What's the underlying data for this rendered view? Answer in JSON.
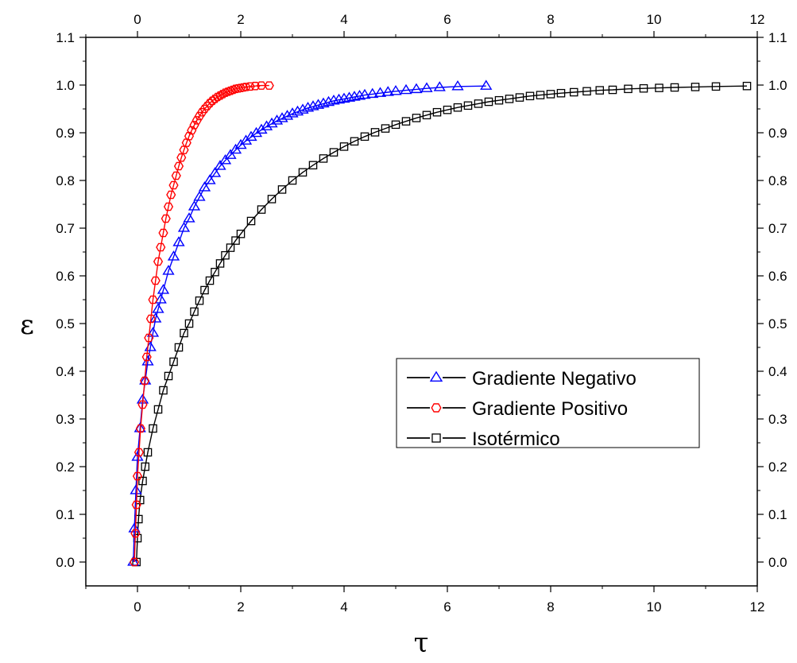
{
  "chart_data": {
    "type": "scatter",
    "title": "",
    "xlabel": "τ",
    "ylabel": "ε",
    "xlim": [
      -1,
      12
    ],
    "ylim": [
      -0.05,
      1.1
    ],
    "xticks": [
      "0",
      "2",
      "4",
      "6",
      "8",
      "10",
      "12"
    ],
    "yticks": [
      "0.0",
      "0.1",
      "0.2",
      "0.3",
      "0.4",
      "0.5",
      "0.6",
      "0.7",
      "0.8",
      "0.9",
      "1.0",
      "1.1"
    ],
    "top_axis_ticks": [
      "0",
      "2",
      "4",
      "6",
      "8",
      "10",
      "12"
    ],
    "right_axis_ticks": [
      "0.0",
      "0.1",
      "0.2",
      "0.3",
      "0.4",
      "0.5",
      "0.6",
      "0.7",
      "0.8",
      "0.9",
      "1.0",
      "1.1"
    ],
    "grid": false,
    "legend_position": "center-right",
    "series": [
      {
        "name": "Gradiente Negativo",
        "marker": "triangle",
        "color": "#0000ff",
        "x": [
          -0.08,
          -0.06,
          -0.03,
          0.0,
          0.05,
          0.1,
          0.15,
          0.2,
          0.25,
          0.3,
          0.35,
          0.4,
          0.45,
          0.5,
          0.6,
          0.7,
          0.8,
          0.9,
          1.0,
          1.1,
          1.2,
          1.3,
          1.4,
          1.5,
          1.6,
          1.7,
          1.8,
          1.9,
          2.0,
          2.1,
          2.2,
          2.3,
          2.4,
          2.5,
          2.6,
          2.7,
          2.8,
          2.9,
          3.0,
          3.1,
          3.2,
          3.3,
          3.4,
          3.5,
          3.6,
          3.7,
          3.8,
          3.9,
          4.0,
          4.1,
          4.2,
          4.3,
          4.4,
          4.55,
          4.7,
          4.85,
          5.0,
          5.2,
          5.4,
          5.6,
          5.85,
          6.2,
          6.75
        ],
        "y": [
          0.0,
          0.07,
          0.15,
          0.22,
          0.28,
          0.34,
          0.38,
          0.42,
          0.45,
          0.48,
          0.51,
          0.53,
          0.55,
          0.57,
          0.61,
          0.64,
          0.67,
          0.7,
          0.72,
          0.745,
          0.765,
          0.785,
          0.8,
          0.815,
          0.83,
          0.842,
          0.853,
          0.864,
          0.874,
          0.883,
          0.891,
          0.899,
          0.906,
          0.913,
          0.919,
          0.925,
          0.93,
          0.935,
          0.94,
          0.944,
          0.948,
          0.952,
          0.955,
          0.958,
          0.961,
          0.964,
          0.967,
          0.969,
          0.971,
          0.973,
          0.975,
          0.977,
          0.979,
          0.981,
          0.983,
          0.985,
          0.987,
          0.989,
          0.991,
          0.993,
          0.995,
          0.997,
          0.998
        ]
      },
      {
        "name": "Gradiente Positivo",
        "marker": "hexagon",
        "color": "#ff0000",
        "x": [
          -0.06,
          -0.04,
          -0.02,
          0.0,
          0.03,
          0.06,
          0.1,
          0.14,
          0.18,
          0.22,
          0.26,
          0.3,
          0.35,
          0.4,
          0.45,
          0.5,
          0.55,
          0.6,
          0.65,
          0.7,
          0.75,
          0.8,
          0.85,
          0.9,
          0.95,
          1.0,
          1.05,
          1.1,
          1.15,
          1.2,
          1.25,
          1.3,
          1.35,
          1.4,
          1.45,
          1.5,
          1.55,
          1.6,
          1.65,
          1.7,
          1.75,
          1.8,
          1.85,
          1.9,
          1.95,
          2.0,
          2.05,
          2.1,
          2.18,
          2.28,
          2.4,
          2.55
        ],
        "y": [
          0.0,
          0.06,
          0.12,
          0.18,
          0.23,
          0.28,
          0.33,
          0.38,
          0.43,
          0.47,
          0.51,
          0.55,
          0.59,
          0.63,
          0.66,
          0.69,
          0.72,
          0.745,
          0.77,
          0.79,
          0.81,
          0.83,
          0.848,
          0.864,
          0.879,
          0.893,
          0.905,
          0.916,
          0.926,
          0.935,
          0.943,
          0.95,
          0.956,
          0.962,
          0.967,
          0.971,
          0.975,
          0.978,
          0.981,
          0.984,
          0.986,
          0.988,
          0.99,
          0.992,
          0.993,
          0.994,
          0.995,
          0.996,
          0.997,
          0.998,
          0.999,
          0.999
        ]
      },
      {
        "name": "Isotérmico",
        "marker": "square",
        "color": "#000000",
        "x": [
          -0.02,
          0.0,
          0.02,
          0.05,
          0.1,
          0.15,
          0.2,
          0.3,
          0.4,
          0.5,
          0.6,
          0.7,
          0.8,
          0.9,
          1.0,
          1.1,
          1.2,
          1.3,
          1.4,
          1.5,
          1.6,
          1.7,
          1.8,
          1.9,
          2.0,
          2.2,
          2.4,
          2.6,
          2.8,
          3.0,
          3.2,
          3.4,
          3.6,
          3.8,
          4.0,
          4.2,
          4.4,
          4.6,
          4.8,
          5.0,
          5.2,
          5.4,
          5.6,
          5.8,
          6.0,
          6.2,
          6.4,
          6.6,
          6.8,
          7.0,
          7.2,
          7.4,
          7.6,
          7.8,
          8.0,
          8.2,
          8.45,
          8.7,
          8.95,
          9.2,
          9.5,
          9.8,
          10.1,
          10.4,
          10.8,
          11.2,
          11.8
        ],
        "y": [
          0.0,
          0.05,
          0.09,
          0.13,
          0.17,
          0.2,
          0.23,
          0.28,
          0.32,
          0.36,
          0.39,
          0.42,
          0.45,
          0.48,
          0.5,
          0.525,
          0.548,
          0.57,
          0.59,
          0.608,
          0.626,
          0.643,
          0.659,
          0.674,
          0.688,
          0.715,
          0.739,
          0.761,
          0.781,
          0.8,
          0.817,
          0.832,
          0.846,
          0.859,
          0.871,
          0.882,
          0.892,
          0.901,
          0.909,
          0.917,
          0.924,
          0.931,
          0.937,
          0.943,
          0.948,
          0.953,
          0.957,
          0.961,
          0.965,
          0.968,
          0.971,
          0.974,
          0.977,
          0.979,
          0.981,
          0.983,
          0.985,
          0.987,
          0.989,
          0.99,
          0.992,
          0.993,
          0.994,
          0.995,
          0.996,
          0.997,
          0.998
        ]
      }
    ]
  }
}
